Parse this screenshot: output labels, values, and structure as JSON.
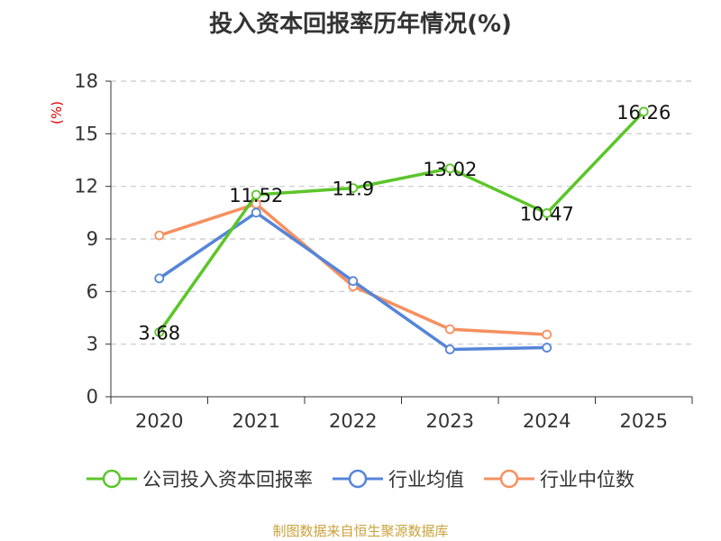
{
  "colors": {
    "company": "#5cc52a",
    "industry_avg": "#5585d8",
    "industry_median": "#f69060",
    "grid": "#c8c8c8",
    "axis": "#333333",
    "unit": "#e00000",
    "source": "#c9a23b"
  },
  "source_text": "制图数据来自恒生聚源数据库",
  "chart_data": {
    "type": "line",
    "title": "投入资本回报率历年情况(%)",
    "ylabel": "(%)",
    "xlabel": "",
    "categories": [
      "2020",
      "2021",
      "2022",
      "2023",
      "2024",
      "2025"
    ],
    "ylim": [
      0,
      18
    ],
    "yticks": [
      0,
      3,
      6,
      9,
      12,
      15,
      18
    ],
    "grid": "horizontal dashed",
    "legend_position": "bottom",
    "series": [
      {
        "key": "company",
        "name": "公司投入资本回报率",
        "values": [
          3.68,
          11.52,
          11.9,
          13.02,
          10.47,
          16.26
        ],
        "labels": [
          "3.68",
          "11.52",
          "11.9",
          "13.02",
          "10.47",
          "16.26"
        ],
        "show_labels": true
      },
      {
        "key": "industry_avg",
        "name": "行业均值",
        "values": [
          6.75,
          10.5,
          6.6,
          2.7,
          2.8,
          null
        ],
        "show_labels": false
      },
      {
        "key": "industry_median",
        "name": "行业中位数",
        "values": [
          9.2,
          11.0,
          6.3,
          3.85,
          3.55,
          null
        ],
        "show_labels": false
      }
    ]
  }
}
